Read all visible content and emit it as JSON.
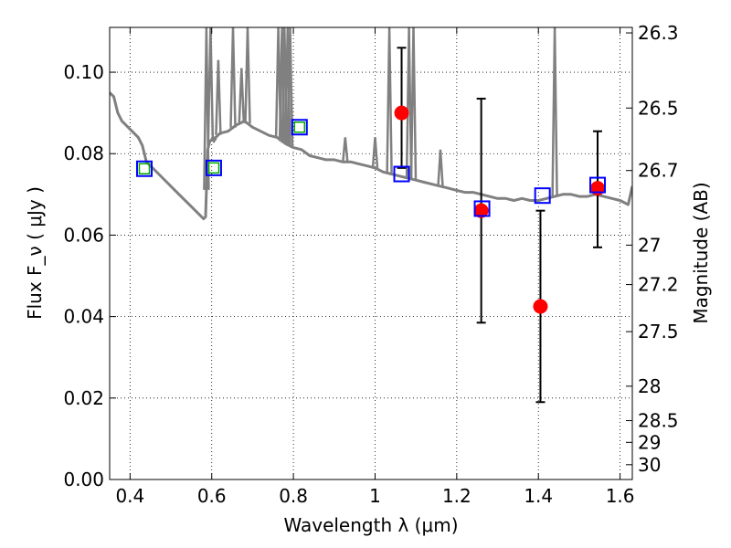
{
  "chart_data": {
    "type": "scatter",
    "xlabel": "Wavelength  λ (μm)",
    "ylabel": "Flux  F_ν  ( μJy )",
    "ylabel_right": "Magnitude (AB)",
    "xlim": [
      0.35,
      1.63
    ],
    "ylim": [
      0.0,
      0.111
    ],
    "grid": true,
    "x_ticks": [
      0.4,
      0.6,
      0.8,
      1.0,
      1.2,
      1.4,
      1.6
    ],
    "x_tick_labels": [
      "0.4",
      "0.6",
      "0.8",
      "1",
      "1.2",
      "1.4",
      "1.6"
    ],
    "y_ticks": [
      0.0,
      0.02,
      0.04,
      0.06,
      0.08,
      0.1
    ],
    "y_tick_labels": [
      "0.00",
      "0.02",
      "0.04",
      "0.06",
      "0.08",
      "0.10"
    ],
    "right_ticks": [
      {
        "label": "26.3",
        "mag": 26.3
      },
      {
        "label": "26.5",
        "mag": 26.5
      },
      {
        "label": "26.7",
        "mag": 26.7
      },
      {
        "label": "27",
        "mag": 27.0
      },
      {
        "label": "27.2",
        "mag": 27.2
      },
      {
        "label": "27.5",
        "mag": 27.5
      },
      {
        "label": "28",
        "mag": 28.0
      },
      {
        "label": "28.5",
        "mag": 28.5
      },
      {
        "label": "29",
        "mag": 29.0
      },
      {
        "label": "30",
        "mag": 30.0
      }
    ],
    "series": [
      {
        "name": "model spectrum",
        "kind": "line",
        "color": "#808080",
        "x": [
          0.35,
          0.36,
          0.37,
          0.38,
          0.39,
          0.4,
          0.41,
          0.42,
          0.43,
          0.44,
          0.45,
          0.47,
          0.49,
          0.51,
          0.53,
          0.55,
          0.57,
          0.58,
          0.585,
          0.59,
          0.595,
          0.6,
          0.61,
          0.62,
          0.64,
          0.66,
          0.68,
          0.7,
          0.72,
          0.74,
          0.76,
          0.78,
          0.8,
          0.82,
          0.84,
          0.86,
          0.88,
          0.9,
          0.92,
          0.94,
          0.96,
          0.98,
          1.0,
          1.02,
          1.04,
          1.06,
          1.08,
          1.1,
          1.12,
          1.14,
          1.16,
          1.18,
          1.2,
          1.22,
          1.24,
          1.26,
          1.28,
          1.3,
          1.32,
          1.34,
          1.36,
          1.38,
          1.4,
          1.42,
          1.44,
          1.46,
          1.48,
          1.5,
          1.52,
          1.54,
          1.56,
          1.58,
          1.6,
          1.62,
          1.63
        ],
        "y": [
          0.095,
          0.094,
          0.09,
          0.088,
          0.087,
          0.086,
          0.085,
          0.084,
          0.082,
          0.078,
          0.077,
          0.075,
          0.073,
          0.071,
          0.069,
          0.067,
          0.065,
          0.064,
          0.0645,
          0.081,
          0.083,
          0.0835,
          0.084,
          0.085,
          0.0855,
          0.087,
          0.088,
          0.0865,
          0.0855,
          0.0845,
          0.084,
          0.0825,
          0.0815,
          0.081,
          0.0795,
          0.079,
          0.0785,
          0.0785,
          0.078,
          0.078,
          0.0775,
          0.077,
          0.0765,
          0.0755,
          0.075,
          0.0745,
          0.074,
          0.0735,
          0.073,
          0.0725,
          0.072,
          0.0715,
          0.071,
          0.0705,
          0.0705,
          0.07,
          0.0695,
          0.069,
          0.069,
          0.0685,
          0.069,
          0.0685,
          0.0685,
          0.069,
          0.0695,
          0.07,
          0.07,
          0.0695,
          0.0695,
          0.07,
          0.0695,
          0.069,
          0.0685,
          0.0675,
          0.072
        ]
      },
      {
        "name": "emission lines",
        "kind": "spikes",
        "color": "#808080",
        "x": [
          0.587,
          0.597,
          0.605,
          0.616,
          0.652,
          0.673,
          0.688,
          0.763,
          0.772,
          0.778,
          0.786,
          0.792,
          0.927,
          1.0,
          1.035,
          1.083,
          1.094,
          1.16,
          1.44
        ],
        "y": [
          0.111,
          0.111,
          0.083,
          0.103,
          0.111,
          0.101,
          0.111,
          0.111,
          0.111,
          0.111,
          0.111,
          0.111,
          0.084,
          0.084,
          0.111,
          0.111,
          0.111,
          0.081,
          0.111
        ]
      },
      {
        "name": "observed photometry",
        "kind": "errorbar",
        "color": "#ff0000",
        "x": [
          1.065,
          1.26,
          1.405,
          1.545
        ],
        "y": [
          0.09,
          0.066,
          0.0425,
          0.0715
        ],
        "yerr_low": [
          0.0765,
          0.0385,
          0.019,
          0.057
        ],
        "yerr_high": [
          0.106,
          0.0935,
          0.066,
          0.0855
        ]
      },
      {
        "name": "model synthetic photometry",
        "kind": "square",
        "color": "#0000ff",
        "x": [
          0.435,
          0.605,
          0.815,
          1.065,
          1.262,
          1.41,
          1.545
        ],
        "y": [
          0.0763,
          0.0765,
          0.0865,
          0.075,
          0.0665,
          0.0697,
          0.0723
        ]
      },
      {
        "name": "optical limits",
        "kind": "square-small",
        "color": "#00aa00",
        "x": [
          0.435,
          0.605,
          0.815
        ],
        "y": [
          0.0763,
          0.0765,
          0.0865
        ]
      }
    ]
  },
  "colors": {
    "spectrum": "#808080",
    "observed": "#ff0000",
    "synthetic": "#0000ff",
    "optical": "#00aa00",
    "errorbar": "#000000"
  }
}
